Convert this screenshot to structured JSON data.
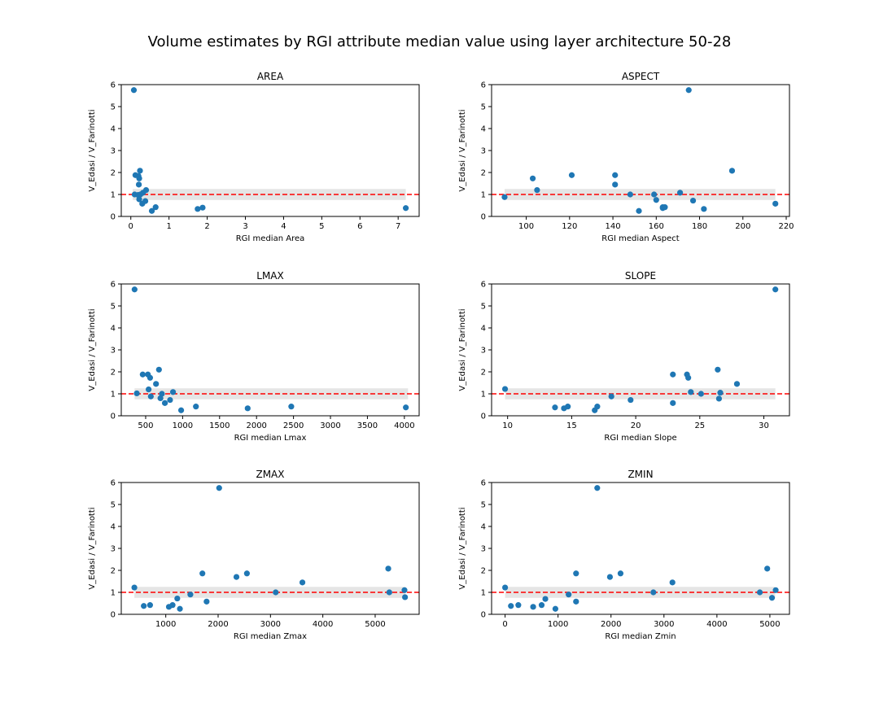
{
  "title": "Volume estimates by RGI attribute median value using layer architecture 50-28",
  "colors": {
    "points": "#1f77b4",
    "reference_line": "#ff0000",
    "band": "#d3d3d3"
  },
  "chart_data": [
    {
      "type": "scatter",
      "title": "AREA",
      "xlabel": "RGI median Area",
      "ylabel": "V_Edasi / V_Farinotti",
      "xlim": [
        -0.25,
        7.55
      ],
      "ylim": [
        0,
        6
      ],
      "xticks": [
        0,
        1,
        2,
        3,
        4,
        5,
        6,
        7
      ],
      "yticks": [
        0,
        1,
        2,
        3,
        4,
        5,
        6
      ],
      "reference_line": 1.0,
      "band": [
        0.75,
        1.25
      ],
      "band_x": [
        0.05,
        7.2
      ],
      "points": [
        [
          0.08,
          5.75
        ],
        [
          0.12,
          1.88
        ],
        [
          0.2,
          1.84
        ],
        [
          0.22,
          1.73
        ],
        [
          0.24,
          2.08
        ],
        [
          0.21,
          1.45
        ],
        [
          0.1,
          1.0
        ],
        [
          0.19,
          0.98
        ],
        [
          0.25,
          1.0
        ],
        [
          0.32,
          1.08
        ],
        [
          0.4,
          1.2
        ],
        [
          0.38,
          0.7
        ],
        [
          0.3,
          0.58
        ],
        [
          0.22,
          0.78
        ],
        [
          0.55,
          0.25
        ],
        [
          0.65,
          0.42
        ],
        [
          1.75,
          0.34
        ],
        [
          1.88,
          0.4
        ],
        [
          7.2,
          0.38
        ]
      ]
    },
    {
      "type": "scatter",
      "title": "ASPECT",
      "xlabel": "RGI median Aspect",
      "ylabel": "V_Edasi / V_Farinotti",
      "xlim": [
        84,
        221.5
      ],
      "ylim": [
        0,
        6
      ],
      "xticks": [
        100,
        120,
        140,
        160,
        180,
        200,
        220
      ],
      "yticks": [
        0,
        1,
        2,
        3,
        4,
        5,
        6
      ],
      "reference_line": 1.0,
      "band": [
        0.75,
        1.25
      ],
      "band_x": [
        90,
        215
      ],
      "points": [
        [
          90,
          0.88
        ],
        [
          103,
          1.73
        ],
        [
          105,
          1.2
        ],
        [
          121,
          1.88
        ],
        [
          141,
          1.88
        ],
        [
          141,
          1.45
        ],
        [
          148,
          1.0
        ],
        [
          152,
          0.25
        ],
        [
          159,
          1.0
        ],
        [
          160,
          0.75
        ],
        [
          163,
          0.42
        ],
        [
          163,
          0.38
        ],
        [
          164,
          0.42
        ],
        [
          171,
          1.08
        ],
        [
          175,
          5.75
        ],
        [
          177,
          0.72
        ],
        [
          182,
          0.34
        ],
        [
          195,
          2.08
        ],
        [
          215,
          0.58
        ]
      ]
    },
    {
      "type": "scatter",
      "title": "LMAX",
      "xlabel": "RGI median Lmax",
      "ylabel": "V_Edasi / V_Farinotti",
      "xlim": [
        170,
        4200
      ],
      "ylim": [
        0,
        6
      ],
      "xticks": [
        500,
        1000,
        1500,
        2000,
        2500,
        3000,
        3500,
        4000
      ],
      "yticks": [
        0,
        1,
        2,
        3,
        4,
        5,
        6
      ],
      "reference_line": 1.0,
      "band": [
        0.75,
        1.25
      ],
      "band_x": [
        350,
        4050
      ],
      "points": [
        [
          350,
          5.75
        ],
        [
          380,
          1.02
        ],
        [
          460,
          1.88
        ],
        [
          530,
          1.88
        ],
        [
          560,
          1.73
        ],
        [
          540,
          1.2
        ],
        [
          570,
          0.88
        ],
        [
          640,
          1.45
        ],
        [
          680,
          2.1
        ],
        [
          700,
          0.8
        ],
        [
          720,
          1.0
        ],
        [
          760,
          0.58
        ],
        [
          830,
          0.72
        ],
        [
          870,
          1.08
        ],
        [
          980,
          0.25
        ],
        [
          1180,
          0.42
        ],
        [
          1880,
          0.34
        ],
        [
          2470,
          0.42
        ],
        [
          4020,
          0.38
        ]
      ]
    },
    {
      "type": "scatter",
      "title": "SLOPE",
      "xlabel": "RGI median Slope",
      "ylabel": "V_Edasi / V_Farinotti",
      "xlim": [
        8.75,
        32
      ],
      "ylim": [
        0,
        6
      ],
      "xticks": [
        10,
        15,
        20,
        25,
        30
      ],
      "yticks": [
        0,
        1,
        2,
        3,
        4,
        5,
        6
      ],
      "reference_line": 1.0,
      "band": [
        0.75,
        1.25
      ],
      "band_x": [
        9.8,
        30.9
      ],
      "points": [
        [
          9.8,
          1.22
        ],
        [
          13.7,
          0.38
        ],
        [
          14.4,
          0.34
        ],
        [
          14.7,
          0.42
        ],
        [
          16.8,
          0.25
        ],
        [
          17.0,
          0.42
        ],
        [
          18.1,
          0.88
        ],
        [
          19.6,
          0.72
        ],
        [
          22.9,
          1.88
        ],
        [
          22.9,
          0.58
        ],
        [
          24.0,
          1.88
        ],
        [
          24.1,
          1.73
        ],
        [
          24.3,
          1.08
        ],
        [
          25.1,
          1.0
        ],
        [
          26.4,
          2.1
        ],
        [
          26.5,
          0.78
        ],
        [
          26.6,
          1.05
        ],
        [
          27.9,
          1.45
        ],
        [
          30.9,
          5.75
        ]
      ]
    },
    {
      "type": "scatter",
      "title": "ZMAX",
      "xlabel": "RGI median Zmax",
      "ylabel": "V_Edasi / V_Farinotti",
      "xlim": [
        150,
        5840
      ],
      "ylim": [
        0,
        6
      ],
      "xticks": [
        1000,
        2000,
        3000,
        4000,
        5000
      ],
      "yticks": [
        0,
        1,
        2,
        3,
        4,
        5,
        6
      ],
      "reference_line": 1.0,
      "band": [
        0.75,
        1.25
      ],
      "band_x": [
        400,
        5580
      ],
      "points": [
        [
          400,
          1.22
        ],
        [
          580,
          0.38
        ],
        [
          700,
          0.42
        ],
        [
          1060,
          0.34
        ],
        [
          1130,
          0.42
        ],
        [
          1220,
          0.72
        ],
        [
          1270,
          0.25
        ],
        [
          1470,
          0.9
        ],
        [
          1700,
          1.86
        ],
        [
          1780,
          0.58
        ],
        [
          2020,
          5.75
        ],
        [
          2350,
          1.7
        ],
        [
          2550,
          1.86
        ],
        [
          3100,
          1.0
        ],
        [
          3610,
          1.45
        ],
        [
          5250,
          2.08
        ],
        [
          5270,
          1.0
        ],
        [
          5560,
          1.1
        ],
        [
          5570,
          0.78
        ]
      ]
    },
    {
      "type": "scatter",
      "title": "ZMIN",
      "xlabel": "RGI median Zmin",
      "ylabel": "V_Edasi / V_Farinotti",
      "xlim": [
        -255,
        5370
      ],
      "ylim": [
        0,
        6
      ],
      "xticks": [
        0,
        1000,
        2000,
        3000,
        4000,
        5000
      ],
      "yticks": [
        0,
        1,
        2,
        3,
        4,
        5,
        6
      ],
      "reference_line": 1.0,
      "band": [
        0.75,
        1.25
      ],
      "band_x": [
        0,
        5100
      ],
      "points": [
        [
          0,
          1.22
        ],
        [
          110,
          0.38
        ],
        [
          250,
          0.42
        ],
        [
          530,
          0.34
        ],
        [
          690,
          0.42
        ],
        [
          760,
          0.7
        ],
        [
          950,
          0.25
        ],
        [
          1200,
          0.9
        ],
        [
          1340,
          1.86
        ],
        [
          1340,
          0.58
        ],
        [
          1740,
          5.75
        ],
        [
          1980,
          1.7
        ],
        [
          2180,
          1.86
        ],
        [
          2800,
          1.0
        ],
        [
          3160,
          1.45
        ],
        [
          4810,
          1.0
        ],
        [
          4950,
          2.08
        ],
        [
          5040,
          0.75
        ],
        [
          5110,
          1.1
        ]
      ]
    }
  ]
}
